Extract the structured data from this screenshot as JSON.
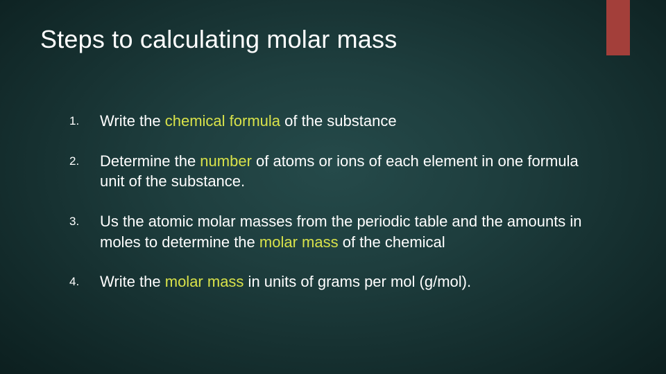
{
  "title": "Steps to calculating molar mass",
  "accent_color": "#a33f3a",
  "highlight_color": "#d9e24a",
  "text_color": "#ffffff",
  "background_gradient": {
    "type": "radial",
    "stops": [
      "#254a4a",
      "#1e3e3e",
      "#173232",
      "#102626",
      "#0c1f1f"
    ]
  },
  "title_fontsize": 36,
  "body_fontsize": 22,
  "number_fontsize": 17,
  "steps": [
    {
      "segments": [
        {
          "text": "Write the ",
          "highlight": false
        },
        {
          "text": "chemical formula",
          "highlight": true
        },
        {
          "text": " of the substance",
          "highlight": false
        }
      ]
    },
    {
      "segments": [
        {
          "text": "Determine the ",
          "highlight": false
        },
        {
          "text": "number",
          "highlight": true
        },
        {
          "text": " of atoms or ions of each element in one formula unit of the substance.",
          "highlight": false
        }
      ]
    },
    {
      "segments": [
        {
          "text": "Us the atomic molar masses from the periodic table and the amounts in moles to determine the ",
          "highlight": false
        },
        {
          "text": "molar mass",
          "highlight": true
        },
        {
          "text": " of the chemical",
          "highlight": false
        }
      ]
    },
    {
      "segments": [
        {
          "text": "Write the ",
          "highlight": false
        },
        {
          "text": "molar mass",
          "highlight": true
        },
        {
          "text": " in units of grams per mol (g/mol).",
          "highlight": false
        }
      ]
    }
  ]
}
